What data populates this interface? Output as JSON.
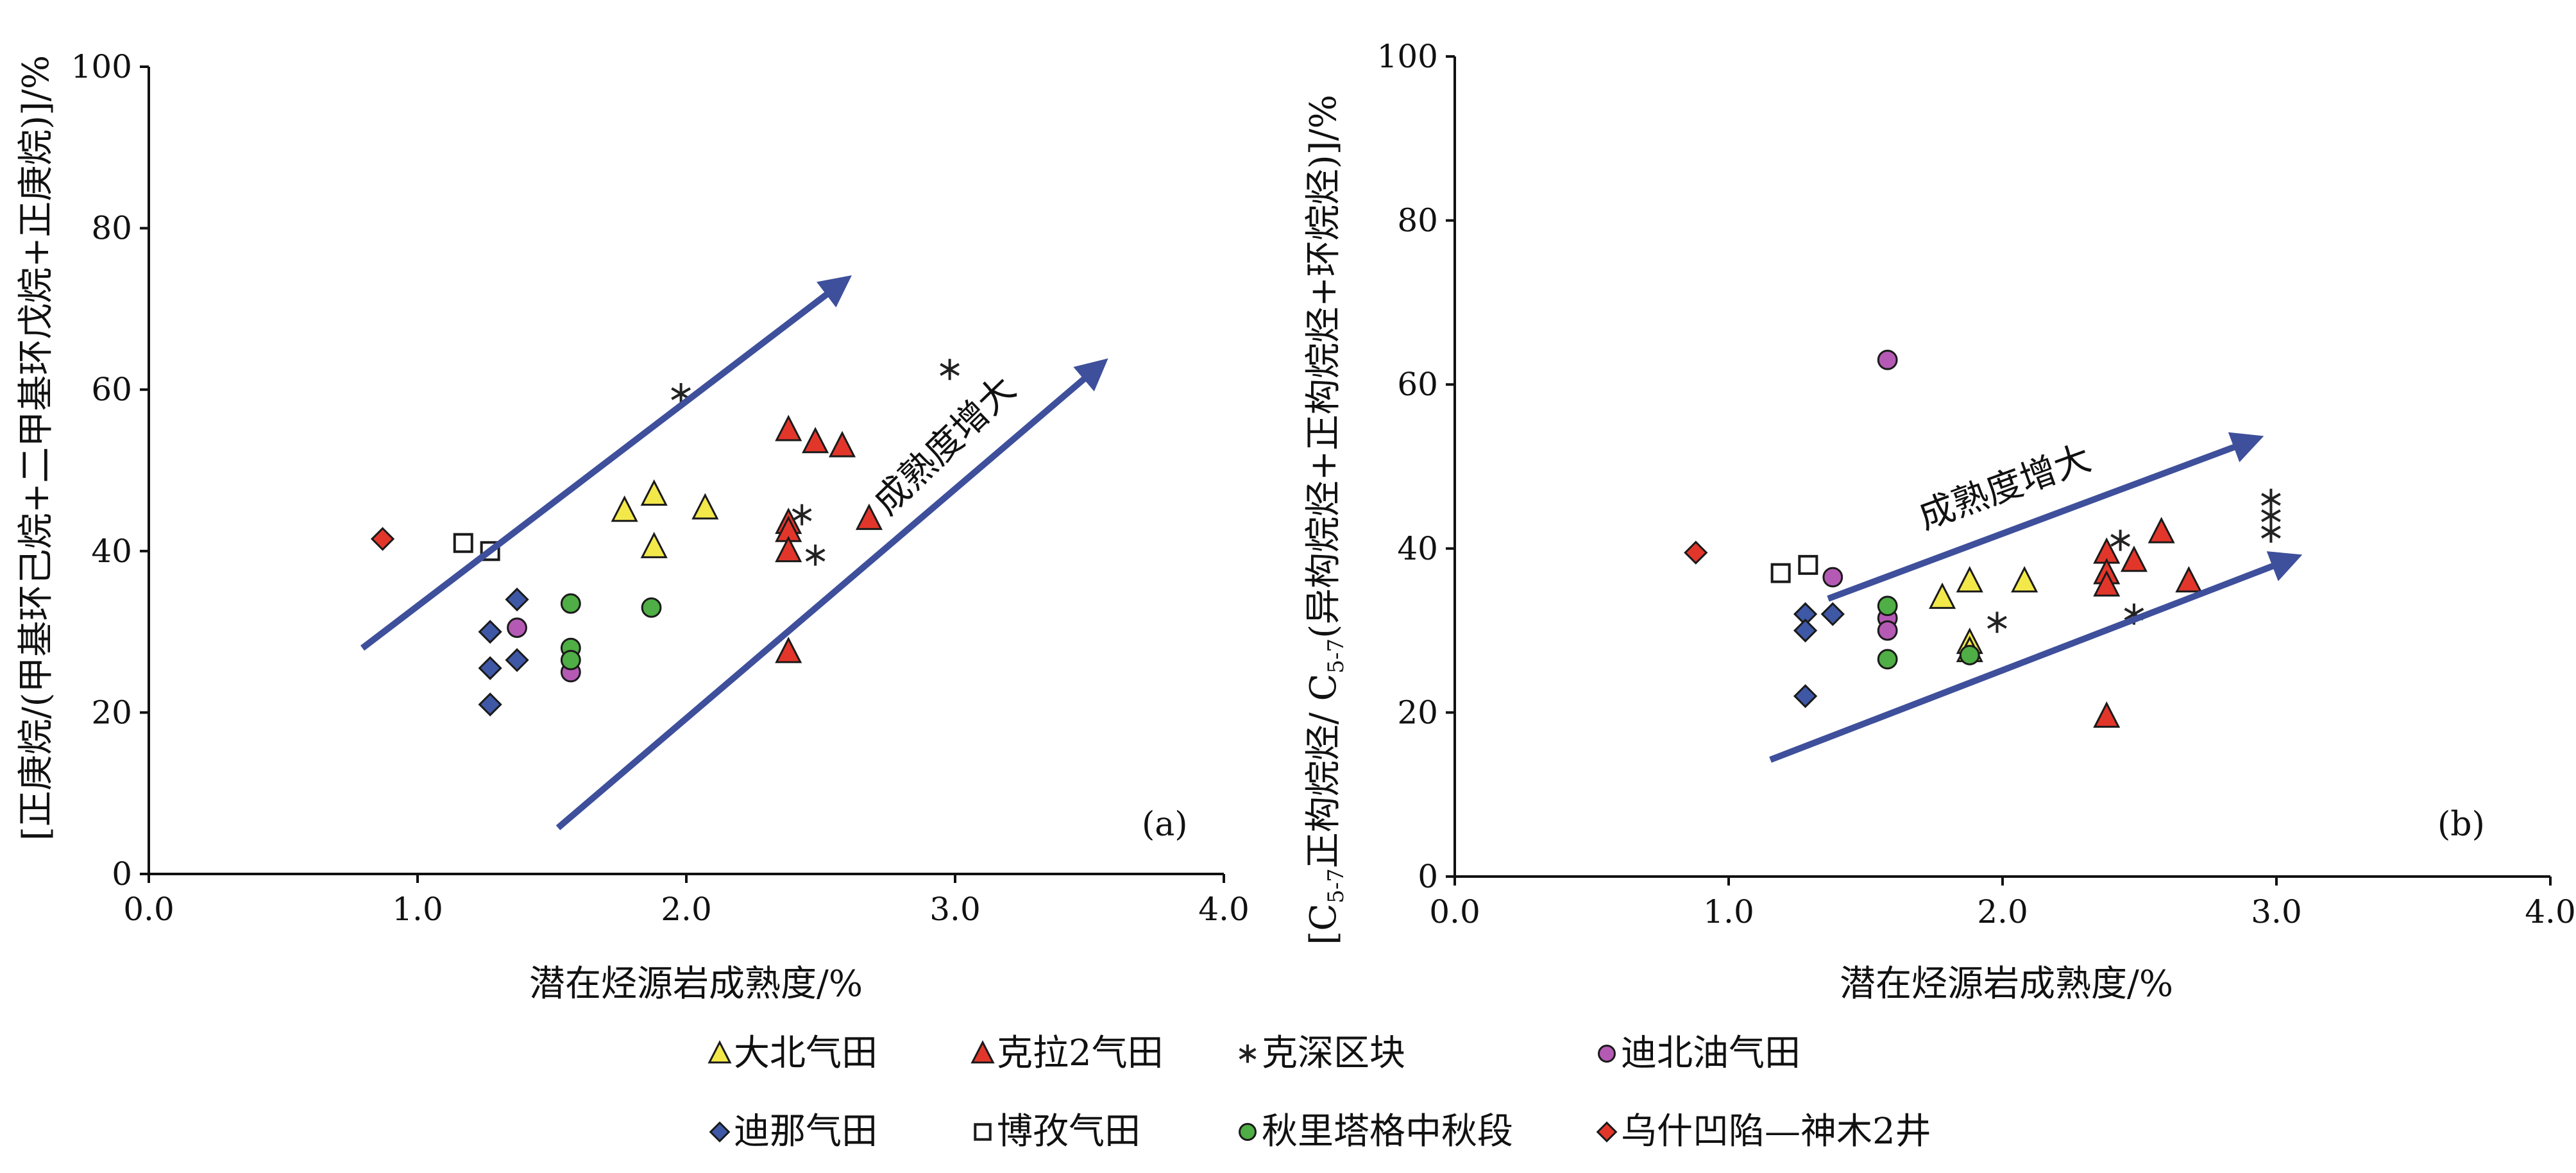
{
  "legend": [
    {
      "id": "dabei",
      "label": "大北气田",
      "marker": "triangle",
      "color": "#f3e84a"
    },
    {
      "id": "kela2",
      "label": "克拉2气田",
      "marker": "triangle",
      "color": "#e3362b"
    },
    {
      "id": "keshen",
      "label": "克深区块",
      "marker": "star",
      "color": "#222222"
    },
    {
      "id": "dibei",
      "label": "迪北油气田",
      "marker": "circle",
      "color": "#b55ab4"
    },
    {
      "id": "dina",
      "label": "迪那气田",
      "marker": "diamond",
      "color": "#3e58a6"
    },
    {
      "id": "bozi",
      "label": "博孜气田",
      "marker": "square",
      "color": "#ffffff"
    },
    {
      "id": "qiulitage",
      "label": "秋里塔格中秋段",
      "marker": "circle",
      "color": "#4fae45"
    },
    {
      "id": "wushi",
      "label": "乌什凹陷—神木2井",
      "marker": "diamond",
      "color": "#e3362b"
    }
  ],
  "chart_data": [
    {
      "type": "scatter",
      "panel_label": "(a)",
      "xlabel": "潜在烃源岩成熟度/%",
      "ylabel": "[正庚烷/(甲基环己烷+二甲基环戊烷+正庚烷)]/%",
      "xlim": [
        0,
        4
      ],
      "ylim": [
        0,
        100
      ],
      "xticks": [
        "0.0",
        "1.0",
        "2.0",
        "3.0",
        "4.0"
      ],
      "yticks": [
        "0",
        "20",
        "40",
        "60",
        "80",
        "100"
      ],
      "annotation": "成熟度增大",
      "series": [
        {
          "name": "大北气田",
          "points": [
            [
              1.77,
              45
            ],
            [
              1.88,
              47
            ],
            [
              1.88,
              40.5
            ],
            [
              2.07,
              45.3
            ]
          ]
        },
        {
          "name": "克拉2气田",
          "points": [
            [
              2.38,
              55
            ],
            [
              2.48,
              53.5
            ],
            [
              2.58,
              53
            ],
            [
              2.38,
              43.5
            ],
            [
              2.38,
              42.5
            ],
            [
              2.38,
              40
            ],
            [
              2.68,
              44
            ],
            [
              2.38,
              27.5
            ]
          ]
        },
        {
          "name": "克深区块",
          "points": [
            [
              1.98,
              59.5
            ],
            [
              2.98,
              62.5
            ],
            [
              2.43,
              44.5
            ],
            [
              2.48,
              39.5
            ]
          ]
        },
        {
          "name": "迪北油气田",
          "points": [
            [
              1.37,
              30.5
            ],
            [
              1.57,
              25
            ]
          ]
        },
        {
          "name": "迪那气田",
          "points": [
            [
              1.37,
              34
            ],
            [
              1.27,
              30
            ],
            [
              1.37,
              26.5
            ],
            [
              1.27,
              25.5
            ],
            [
              1.27,
              21
            ]
          ]
        },
        {
          "name": "博孜气田",
          "points": [
            [
              1.17,
              41
            ],
            [
              1.27,
              40
            ]
          ]
        },
        {
          "name": "秋里塔格中秋段",
          "points": [
            [
              1.57,
              33.5
            ],
            [
              1.87,
              33
            ],
            [
              1.57,
              28
            ],
            [
              1.57,
              26.5
            ]
          ]
        },
        {
          "name": "乌什凹陷—神木2井",
          "points": [
            [
              0.87,
              41.5
            ]
          ]
        }
      ]
    },
    {
      "type": "scatter",
      "panel_label": "(b)",
      "xlabel": "潜在烃源岩成熟度/%",
      "ylabel": "[C5-7正构烷烃/C5-7(异构烷烃+正构烷烃+环烷烃)]/%",
      "ylabel_parts": {
        "open": "[C",
        "sub1": "5-7",
        "mid": "正构烷烃/ C",
        "sub2": "5-7",
        "close": "(异构烷烃+正构烷烃+环烷烃)]/%"
      },
      "xlim": [
        0,
        4
      ],
      "ylim": [
        0,
        100
      ],
      "xticks": [
        "0.0",
        "1.0",
        "2.0",
        "3.0",
        "4.0"
      ],
      "yticks": [
        "0",
        "20",
        "40",
        "60",
        "80",
        "100"
      ],
      "annotation": "成熟度增大",
      "series": [
        {
          "name": "大北气田",
          "points": [
            [
              1.78,
              34
            ],
            [
              1.88,
              36
            ],
            [
              2.08,
              36
            ],
            [
              1.88,
              28.5
            ],
            [
              1.88,
              27.5
            ]
          ]
        },
        {
          "name": "克拉2气田",
          "points": [
            [
              2.38,
              39.5
            ],
            [
              2.58,
              42
            ],
            [
              2.48,
              38.5
            ],
            [
              2.38,
              37
            ],
            [
              2.38,
              35.5
            ],
            [
              2.68,
              36
            ],
            [
              2.38,
              19.5
            ]
          ]
        },
        {
          "name": "克深区块",
          "points": [
            [
              2.43,
              41
            ],
            [
              1.98,
              31
            ],
            [
              2.48,
              32
            ],
            [
              2.98,
              46
            ],
            [
              2.98,
              44
            ],
            [
              2.98,
              42
            ]
          ]
        },
        {
          "name": "迪北油气田",
          "points": [
            [
              1.58,
              63
            ],
            [
              1.38,
              36.5
            ],
            [
              1.58,
              31.5
            ],
            [
              1.58,
              30
            ]
          ]
        },
        {
          "name": "迪那气田",
          "points": [
            [
              1.28,
              32
            ],
            [
              1.28,
              30
            ],
            [
              1.38,
              32
            ],
            [
              1.28,
              22
            ]
          ]
        },
        {
          "name": "博孜气田",
          "points": [
            [
              1.19,
              37
            ],
            [
              1.29,
              38
            ]
          ]
        },
        {
          "name": "秋里塔格中秋段",
          "points": [
            [
              1.58,
              33
            ],
            [
              1.58,
              26.5
            ],
            [
              1.88,
              27
            ]
          ]
        },
        {
          "name": "乌什凹陷—神木2井",
          "points": [
            [
              0.88,
              39.5
            ]
          ]
        }
      ]
    }
  ]
}
